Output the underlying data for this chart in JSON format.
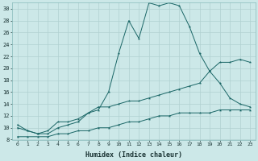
{
  "xlabel": "Humidex (Indice chaleur)",
  "background_color": "#cce8e8",
  "grid_color": "#b0d0d0",
  "line_color": "#1a6666",
  "xlim": [
    -0.5,
    23.5
  ],
  "ylim": [
    8,
    31
  ],
  "xticks": [
    0,
    1,
    2,
    3,
    4,
    5,
    6,
    7,
    8,
    9,
    10,
    11,
    12,
    13,
    14,
    15,
    16,
    17,
    18,
    19,
    20,
    21,
    22,
    23
  ],
  "yticks": [
    8,
    10,
    12,
    14,
    16,
    18,
    20,
    22,
    24,
    26,
    28,
    30
  ],
  "series": {
    "line1_x": [
      0,
      1,
      2,
      3,
      4,
      5,
      6,
      7,
      8,
      9,
      10,
      11,
      12,
      13,
      14,
      15,
      16,
      17,
      18,
      19,
      20,
      21,
      22,
      23
    ],
    "line1_y": [
      10.5,
      9.5,
      9.0,
      9.5,
      11.0,
      11.0,
      11.5,
      12.5,
      13.0,
      16.0,
      22.5,
      28.0,
      25.0,
      31.0,
      30.5,
      31.0,
      30.5,
      27.0,
      22.5,
      19.5,
      17.5,
      15.0,
      14.0,
      13.5
    ],
    "line2_x": [
      0,
      1,
      2,
      3,
      4,
      5,
      6,
      7,
      8,
      9,
      10,
      11,
      12,
      13,
      14,
      15,
      16,
      17,
      18,
      19,
      20,
      21,
      22,
      23
    ],
    "line2_y": [
      10.0,
      9.5,
      9.0,
      9.0,
      10.0,
      10.5,
      11.0,
      12.5,
      13.5,
      13.5,
      14.0,
      14.5,
      14.5,
      15.0,
      15.5,
      16.0,
      16.5,
      17.0,
      17.5,
      19.5,
      21.0,
      21.0,
      21.5,
      21.0
    ],
    "line3_x": [
      0,
      1,
      2,
      3,
      4,
      5,
      6,
      7,
      8,
      9,
      10,
      11,
      12,
      13,
      14,
      15,
      16,
      17,
      18,
      19,
      20,
      21,
      22,
      23
    ],
    "line3_y": [
      8.5,
      8.5,
      8.5,
      8.5,
      9.0,
      9.0,
      9.5,
      9.5,
      10.0,
      10.0,
      10.5,
      11.0,
      11.0,
      11.5,
      12.0,
      12.0,
      12.5,
      12.5,
      12.5,
      12.5,
      13.0,
      13.0,
      13.0,
      13.0
    ]
  }
}
